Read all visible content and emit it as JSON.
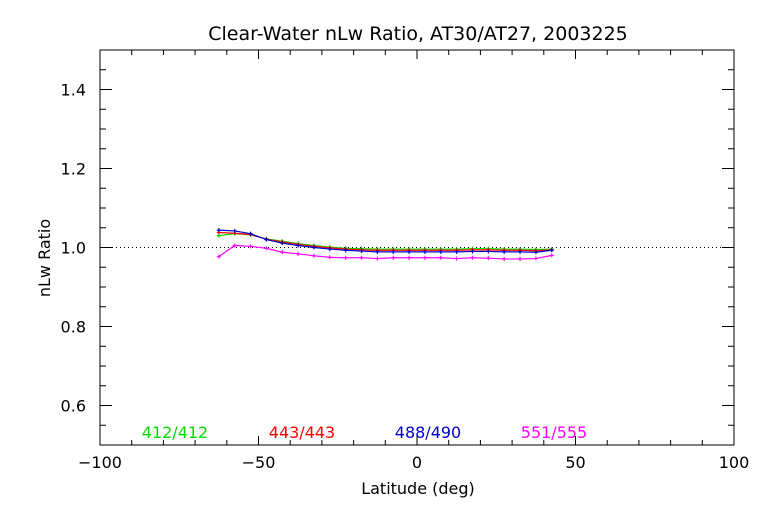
{
  "chart_data": {
    "type": "line",
    "title": "Clear-Water nLw Ratio, AT30/AT27, 2003225",
    "xlabel": "Latitude (deg)",
    "ylabel": "nLw Ratio",
    "xlim": [
      -100,
      100
    ],
    "ylim": [
      0.5,
      1.5
    ],
    "xticks": [
      -100,
      -50,
      0,
      50,
      100
    ],
    "xtick_labels": [
      "−100",
      "−50",
      "0",
      "50",
      "100"
    ],
    "yticks": [
      0.6,
      0.8,
      1.0,
      1.2,
      1.4
    ],
    "ytick_labels": [
      "0.6",
      "0.8",
      "1.0",
      "1.2",
      "1.4"
    ],
    "reference_line": 1.0,
    "grid": false,
    "legend_placement": "bottom, inside plot",
    "x": [
      -62.5,
      -57.5,
      -52.5,
      -47.5,
      -42.5,
      -37.5,
      -32.5,
      -27.5,
      -22.5,
      -17.5,
      -12.5,
      -7.5,
      -2.5,
      2.5,
      7.5,
      12.5,
      17.5,
      22.5,
      27.5,
      32.5,
      37.5,
      42.5
    ],
    "series": [
      {
        "name": "412/412",
        "color": "#00dd00",
        "values": [
          1.03,
          1.035,
          1.032,
          1.022,
          1.016,
          1.01,
          1.005,
          1.001,
          0.998,
          0.997,
          0.996,
          0.996,
          0.996,
          0.996,
          0.996,
          0.996,
          0.997,
          0.997,
          0.996,
          0.996,
          0.995,
          0.996
        ]
      },
      {
        "name": "443/443",
        "color": "#ff0000",
        "values": [
          1.038,
          1.036,
          1.033,
          1.021,
          1.014,
          1.008,
          1.003,
          0.999,
          0.996,
          0.994,
          0.993,
          0.993,
          0.993,
          0.993,
          0.993,
          0.993,
          0.994,
          0.994,
          0.993,
          0.993,
          0.992,
          0.994
        ]
      },
      {
        "name": "488/490",
        "color": "#0000cc",
        "values": [
          1.044,
          1.042,
          1.035,
          1.02,
          1.011,
          1.005,
          1.0,
          0.996,
          0.993,
          0.991,
          0.989,
          0.989,
          0.989,
          0.989,
          0.989,
          0.989,
          0.99,
          0.99,
          0.989,
          0.989,
          0.988,
          0.993
        ]
      },
      {
        "name": "551/555",
        "color": "#ff00ff",
        "values": [
          0.977,
          1.005,
          1.003,
          0.998,
          0.988,
          0.984,
          0.979,
          0.975,
          0.974,
          0.974,
          0.972,
          0.974,
          0.974,
          0.974,
          0.974,
          0.972,
          0.974,
          0.973,
          0.971,
          0.971,
          0.972,
          0.98
        ]
      }
    ]
  }
}
